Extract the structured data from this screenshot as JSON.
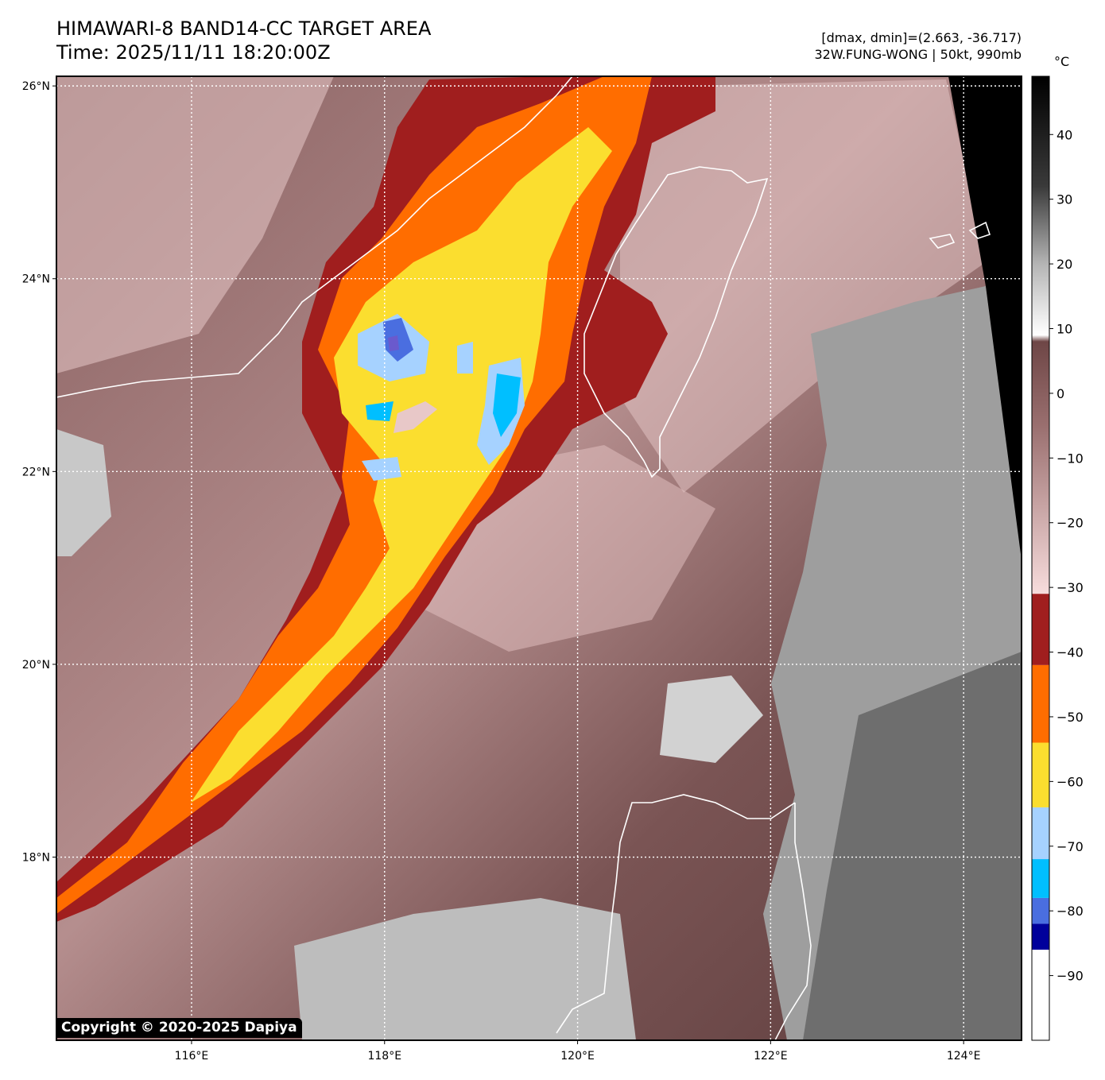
{
  "header": {
    "title": "HIMAWARI-8 BAND14-CC TARGET AREA",
    "time": "Time: 2025/11/11 18:20:00Z",
    "stats": "[dmax, dmin]=(2.663, -36.717)",
    "storm": "32W.FUNG-WONG | 50kt, 990mb"
  },
  "map": {
    "lat_labels": [
      "26°N",
      "24°N",
      "22°N",
      "20°N",
      "18°N"
    ],
    "lon_labels": [
      "116°E",
      "118°E",
      "120°E",
      "122°E",
      "124°E"
    ],
    "lat_values": [
      26,
      24,
      22,
      20,
      18
    ],
    "lon_values": [
      116,
      118,
      120,
      122,
      124
    ],
    "extent": {
      "lon_min": 114.6,
      "lon_max": 124.6,
      "lat_min": 16.1,
      "lat_max": 26.1
    },
    "grid": "dotted"
  },
  "colorbar": {
    "unit": "°C",
    "tick_labels": [
      "40",
      "30",
      "20",
      "10",
      "0",
      "−10",
      "−20",
      "−30",
      "−40",
      "−50",
      "−60",
      "−70",
      "−80",
      "−90"
    ],
    "tick_values": [
      40,
      30,
      20,
      10,
      0,
      -10,
      -20,
      -30,
      -40,
      -50,
      -60,
      -70,
      -80,
      -90
    ],
    "range": [
      -100,
      49
    ],
    "segments": [
      {
        "from": -100,
        "to": -86,
        "color": "#ffffff"
      },
      {
        "from": -86,
        "to": -82,
        "color": "#00009b"
      },
      {
        "from": -82,
        "to": -78,
        "color": "#4a6ee0"
      },
      {
        "from": -78,
        "to": -72,
        "color": "#00bfff"
      },
      {
        "from": -72,
        "to": -64,
        "color": "#a6d2ff"
      },
      {
        "from": -64,
        "to": -54,
        "color": "#fbde2f"
      },
      {
        "from": -54,
        "to": -42,
        "color": "#ff6d00"
      },
      {
        "from": -42,
        "to": -31,
        "color": "#a01e1e"
      }
    ],
    "gradient_stops": [
      {
        "value": -31,
        "color": "#f7dcdc"
      },
      {
        "value": -18,
        "color": "#c9a6a6"
      },
      {
        "value": -5,
        "color": "#9a6f6f"
      },
      {
        "value": 8,
        "color": "#6e4646"
      },
      {
        "value": 9,
        "color": "#ffffff"
      },
      {
        "value": 20,
        "color": "#b4b4b4"
      },
      {
        "value": 32,
        "color": "#3a3a3a"
      },
      {
        "value": 49,
        "color": "#000000"
      }
    ]
  },
  "copyright": "Copyright © 2020-2025 Dapiya"
}
